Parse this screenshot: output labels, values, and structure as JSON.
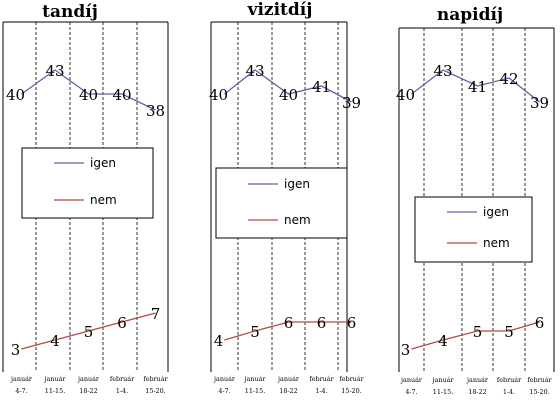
{
  "chart_data": [
    {
      "type": "line",
      "title": "tandíj",
      "categories": [
        [
          "január",
          "4-7."
        ],
        [
          "január",
          "11-15."
        ],
        [
          "január",
          "18-22"
        ],
        [
          "február",
          "1-4."
        ],
        [
          "február",
          "15-20."
        ]
      ],
      "series": [
        {
          "name": "igen",
          "values": [
            40,
            43,
            40,
            40,
            38
          ],
          "color": "#5a67a8"
        },
        {
          "name": "nem",
          "values": [
            3,
            4,
            5,
            6,
            7
          ],
          "color": "#b34b43"
        }
      ],
      "legend": "center",
      "grid": "vertical dashed"
    },
    {
      "type": "line",
      "title": "vizitdíj",
      "categories": [
        [
          "január",
          "4-7."
        ],
        [
          "január",
          "11-15."
        ],
        [
          "január",
          "18-22"
        ],
        [
          "február",
          "1-4."
        ],
        [
          "február",
          "15-20."
        ]
      ],
      "series": [
        {
          "name": "igen",
          "values": [
            40,
            43,
            40,
            41,
            39
          ],
          "color": "#5a67a8"
        },
        {
          "name": "nem",
          "values": [
            4,
            5,
            6,
            6,
            6
          ],
          "color": "#b34b43"
        }
      ],
      "legend": "center",
      "grid": "vertical dashed"
    },
    {
      "type": "line",
      "title": "napidíj",
      "categories": [
        [
          "január",
          "4-7."
        ],
        [
          "január",
          "11-15."
        ],
        [
          "január",
          "18-22"
        ],
        [
          "február",
          "1-4."
        ],
        [
          "február",
          "15-20."
        ]
      ],
      "series": [
        {
          "name": "igen",
          "values": [
            40,
            43,
            41,
            42,
            39
          ],
          "color": "#5a67a8"
        },
        {
          "name": "nem",
          "values": [
            3,
            4,
            5,
            5,
            6
          ],
          "color": "#b34b43"
        }
      ],
      "legend": "center",
      "grid": "vertical dashed"
    }
  ]
}
